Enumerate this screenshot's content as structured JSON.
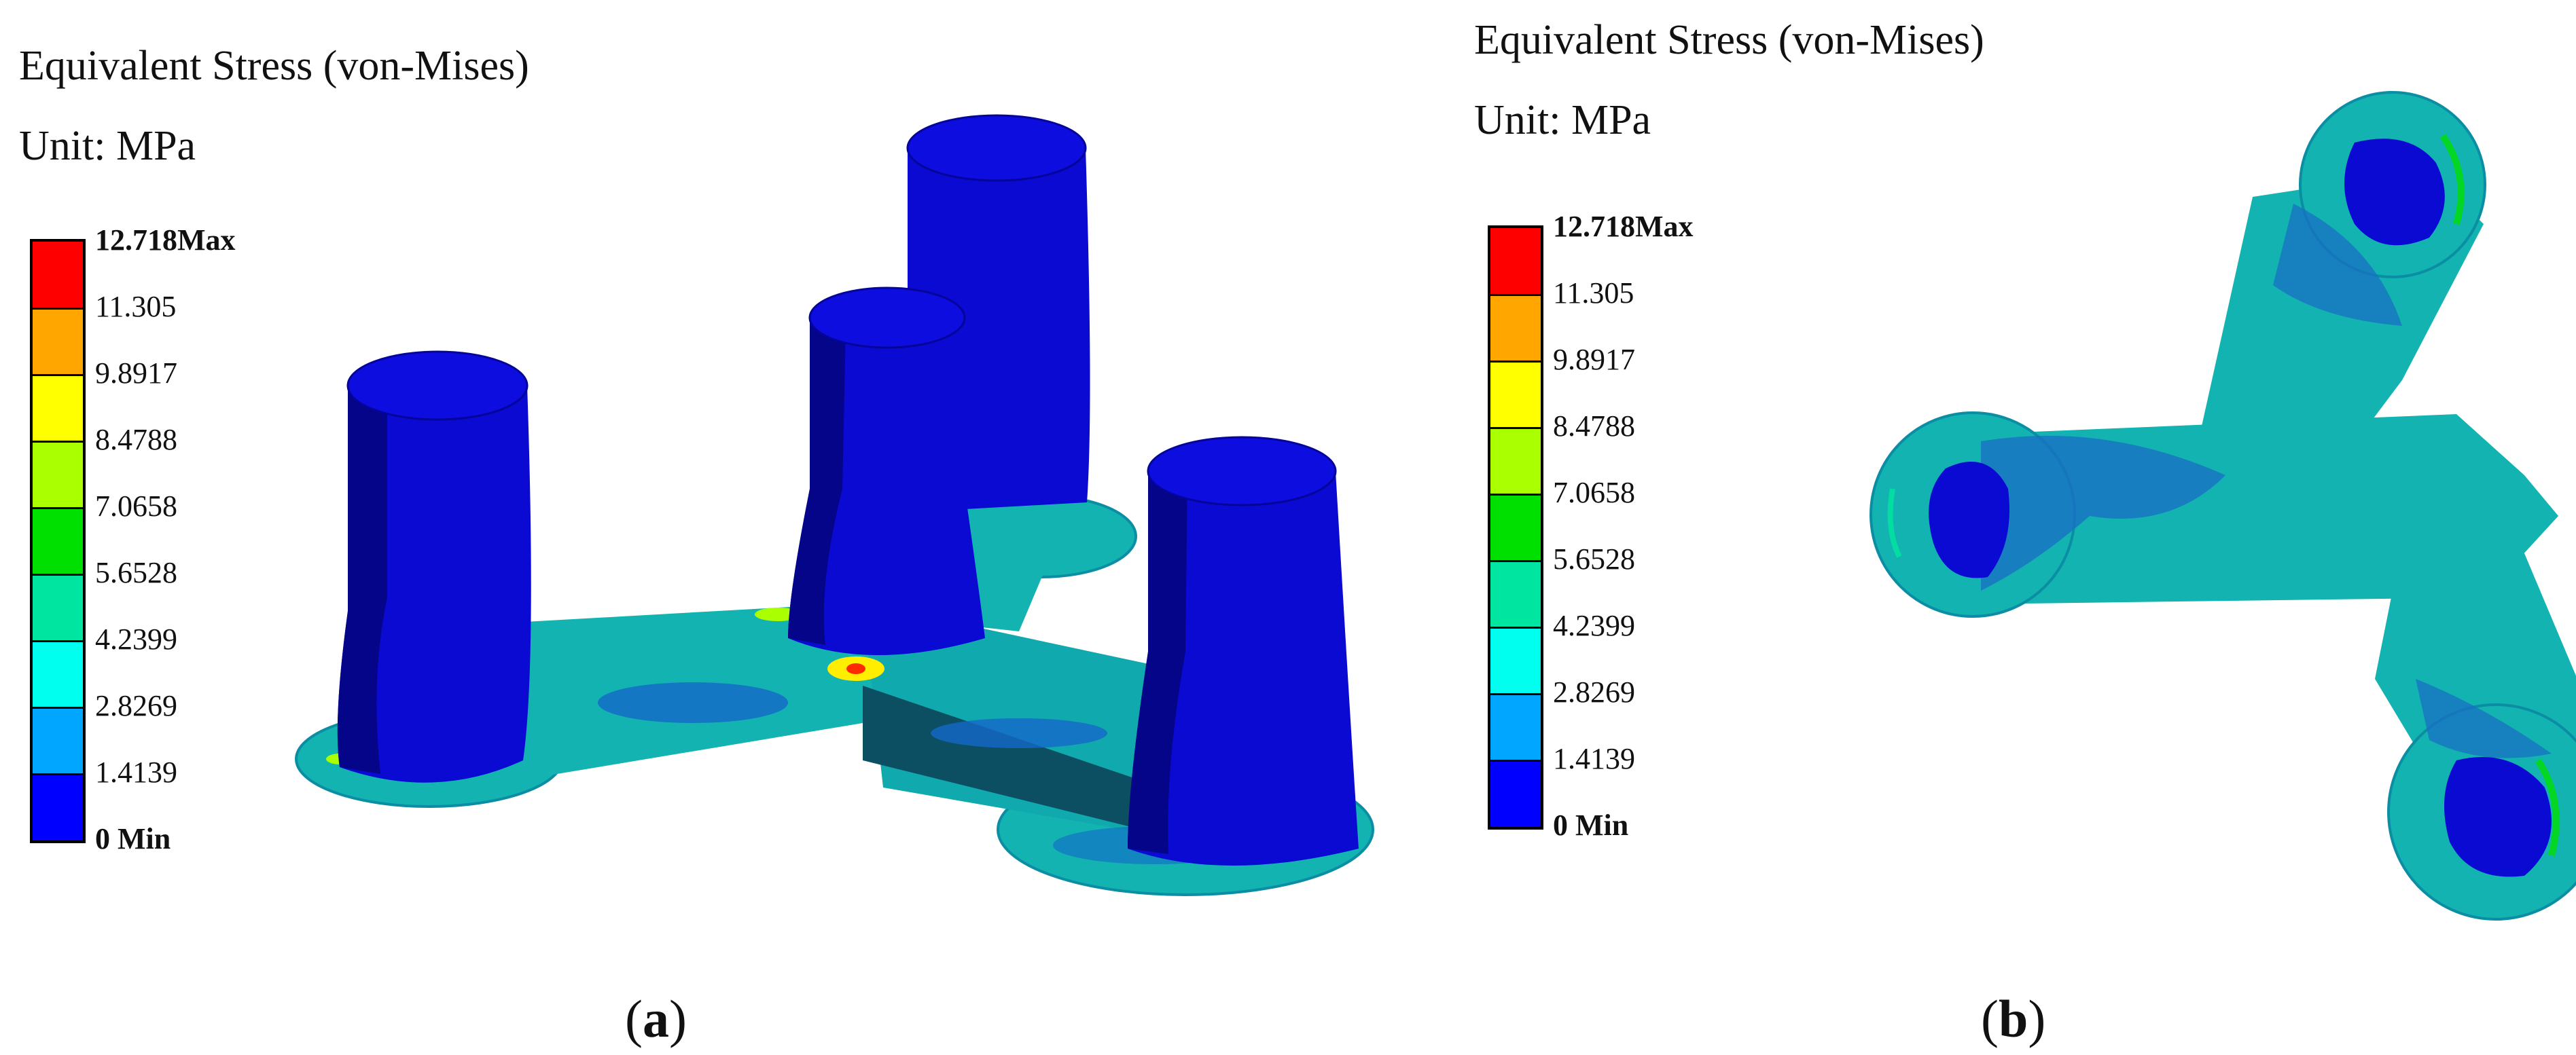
{
  "panels": [
    {
      "id": "a",
      "title_line1": "Equivalent Stress (von-Mises)",
      "title_line2": "Unit: MPa",
      "caption_open": "(",
      "caption_letter": "a",
      "caption_close": ")"
    },
    {
      "id": "b",
      "title_line1": "Equivalent Stress (von-Mises)",
      "title_line2": "Unit: MPa",
      "caption_open": "(",
      "caption_letter": "b",
      "caption_close": ")"
    }
  ],
  "legend": {
    "levels": [
      "12.718Max",
      "11.305",
      "9.8917",
      "8.4788",
      "7.0658",
      "5.6528",
      "4.2399",
      "2.8269",
      "1.4139",
      "0 Min"
    ],
    "colors": [
      "#ff0000",
      "#ffa600",
      "#ffff00",
      "#aaff00",
      "#00e000",
      "#00e6a0",
      "#00ffee",
      "#00a6ff",
      "#0000ff"
    ]
  },
  "colors": {
    "pillar": "#0a0ad2",
    "pillar_dark": "#050580",
    "plate": "#12b3b0",
    "plate_dark": "#0d6b9a",
    "hole": "#0a0ad2"
  }
}
